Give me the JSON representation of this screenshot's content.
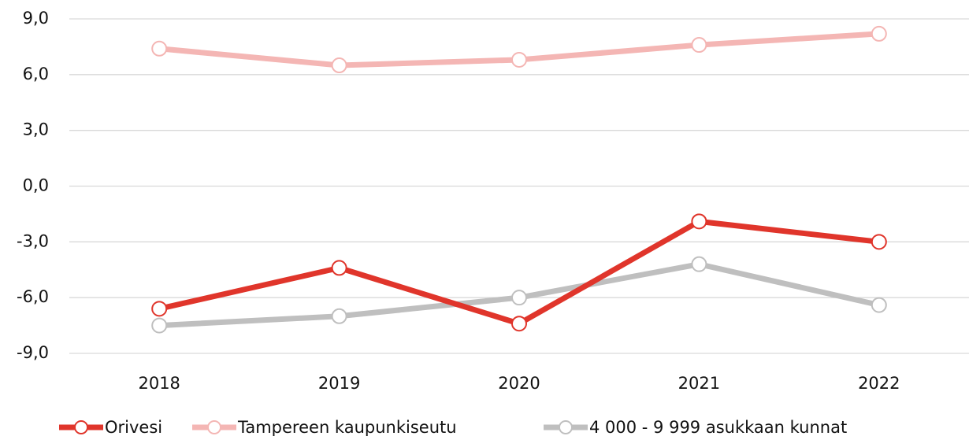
{
  "chart_data": {
    "type": "line",
    "categories": [
      "2018",
      "2019",
      "2020",
      "2021",
      "2022"
    ],
    "series": [
      {
        "name": "Orivesi",
        "color": "#e0352b",
        "values": [
          -6.6,
          -4.4,
          -7.4,
          -1.9,
          -3.0
        ]
      },
      {
        "name": "Tampereen kaupunkiseutu",
        "color": "#f4b6b4",
        "values": [
          7.4,
          6.5,
          6.8,
          7.6,
          8.2
        ]
      },
      {
        "name": "4 000 - 9 999 asukkaan kunnat",
        "color": "#bfbfbf",
        "values": [
          -7.5,
          -7.0,
          -6.0,
          -4.2,
          -6.4
        ]
      }
    ],
    "ylim": [
      -9,
      9
    ],
    "yticks": [
      {
        "value": -9,
        "label": "-9,0"
      },
      {
        "value": -6,
        "label": "-6,0"
      },
      {
        "value": -3,
        "label": "-3,0"
      },
      {
        "value": 0,
        "label": "0,0"
      },
      {
        "value": 3,
        "label": "3,0"
      },
      {
        "value": 6,
        "label": "6,0"
      },
      {
        "value": 9,
        "label": "9,0"
      }
    ],
    "grid": true,
    "legend": "bottom"
  }
}
